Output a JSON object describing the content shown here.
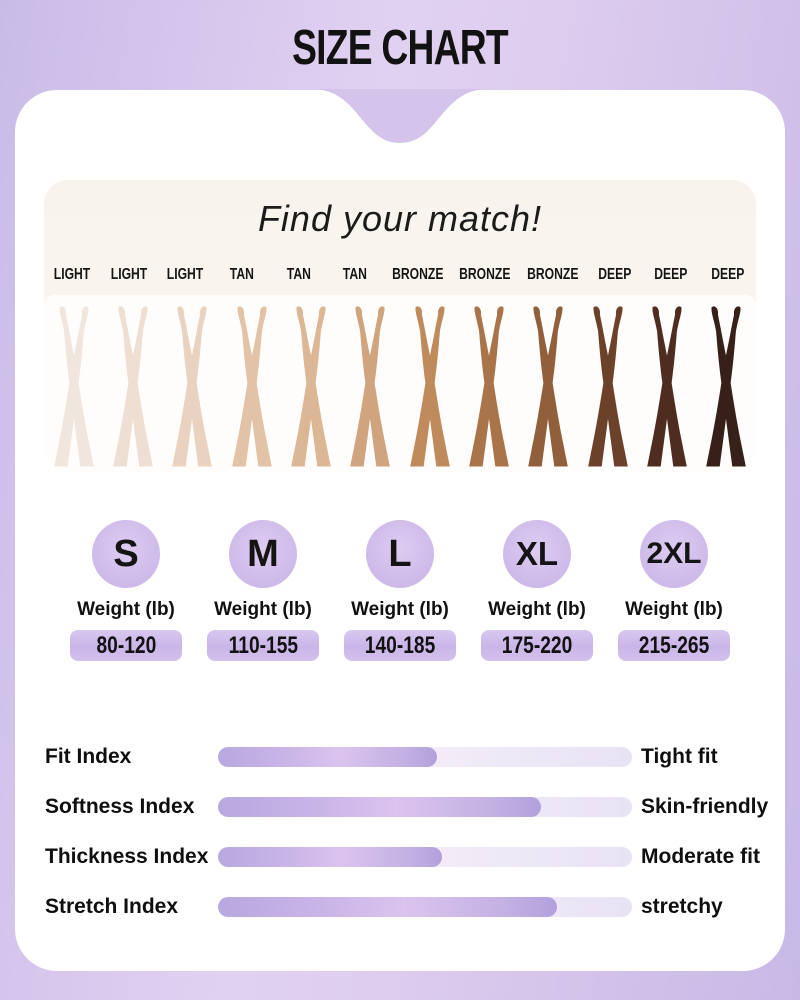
{
  "page": {
    "title": "SIZE CHART"
  },
  "match": {
    "heading": "Find your match!",
    "tones": [
      {
        "label": "LIGHT",
        "color": "#f0e6dd"
      },
      {
        "label": "LIGHT",
        "color": "#eedfd2"
      },
      {
        "label": "LIGHT",
        "color": "#e9d2bf"
      },
      {
        "label": "TAN",
        "color": "#e2c3a7"
      },
      {
        "label": "TAN",
        "color": "#dcb795"
      },
      {
        "label": "TAN",
        "color": "#d0a47e"
      },
      {
        "label": "BRONZE",
        "color": "#bf8a5c"
      },
      {
        "label": "BRONZE",
        "color": "#a9744a"
      },
      {
        "label": "BRONZE",
        "color": "#915f3b"
      },
      {
        "label": "DEEP",
        "color": "#6b4129"
      },
      {
        "label": "DEEP",
        "color": "#4e2d20"
      },
      {
        "label": "DEEP",
        "color": "#362018"
      }
    ]
  },
  "sizes": {
    "weight_label": "Weight (lb)",
    "items": [
      {
        "size": "S",
        "range": "80-120"
      },
      {
        "size": "M",
        "range": "110-155"
      },
      {
        "size": "L",
        "range": "140-185"
      },
      {
        "size": "XL",
        "range": "175-220"
      },
      {
        "size": "2XL",
        "range": "215-265"
      }
    ]
  },
  "indexes": [
    {
      "label": "Fit Index",
      "value_pct": 53,
      "right": "Tight fit"
    },
    {
      "label": "Softness Index",
      "value_pct": 78,
      "right": "Skin-friendly"
    },
    {
      "label": "Thickness Index",
      "value_pct": 54,
      "right": "Moderate fit"
    },
    {
      "label": "Stretch Index",
      "value_pct": 82,
      "right": "stretchy"
    }
  ],
  "colors": {
    "background_lavender": "#d3c3eb",
    "card": "#ffffff",
    "panel_cream": "#f8f3ed",
    "accent_lavender": "#cbb7e8",
    "bar_fill": "#bfaee4",
    "bar_track": "#efe9f8",
    "text": "#111111"
  }
}
